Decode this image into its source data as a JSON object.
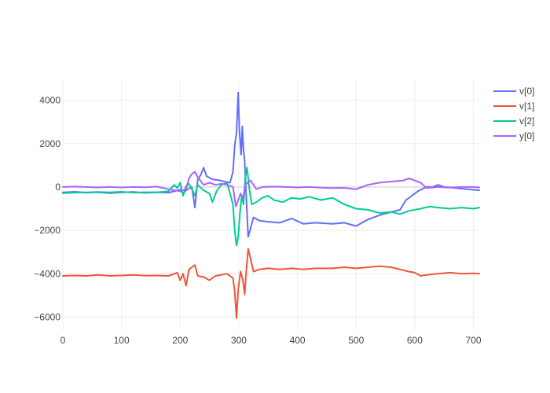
{
  "chart_data": {
    "type": "line",
    "title": "",
    "xlabel": "",
    "ylabel": "",
    "xlim": [
      0,
      710
    ],
    "ylim": [
      -6600,
      5000
    ],
    "x_ticks": [
      0,
      100,
      200,
      300,
      400,
      500,
      600,
      700
    ],
    "y_ticks": [
      -6000,
      -4000,
      -2000,
      0,
      2000,
      4000
    ],
    "grid": true,
    "legend_position": "top-right",
    "series": [
      {
        "name": "v[0]",
        "color": "#636efa",
        "points": [
          [
            0,
            -250
          ],
          [
            20,
            -220
          ],
          [
            40,
            -260
          ],
          [
            60,
            -240
          ],
          [
            80,
            -280
          ],
          [
            100,
            -250
          ],
          [
            120,
            -230
          ],
          [
            140,
            -270
          ],
          [
            160,
            -240
          ],
          [
            180,
            -260
          ],
          [
            190,
            -200
          ],
          [
            200,
            -120
          ],
          [
            205,
            -300
          ],
          [
            210,
            -150
          ],
          [
            220,
            0
          ],
          [
            225,
            -950
          ],
          [
            230,
            350
          ],
          [
            235,
            550
          ],
          [
            240,
            900
          ],
          [
            245,
            500
          ],
          [
            255,
            350
          ],
          [
            265,
            320
          ],
          [
            275,
            250
          ],
          [
            285,
            200
          ],
          [
            290,
            700
          ],
          [
            293,
            1900
          ],
          [
            296,
            2500
          ],
          [
            299,
            4350
          ],
          [
            301,
            2600
          ],
          [
            304,
            1500
          ],
          [
            306,
            2800
          ],
          [
            308,
            1700
          ],
          [
            310,
            1200
          ],
          [
            313,
            -600
          ],
          [
            316,
            -2300
          ],
          [
            320,
            -1900
          ],
          [
            325,
            -1400
          ],
          [
            335,
            -1550
          ],
          [
            350,
            -1600
          ],
          [
            370,
            -1650
          ],
          [
            390,
            -1450
          ],
          [
            410,
            -1700
          ],
          [
            430,
            -1650
          ],
          [
            460,
            -1700
          ],
          [
            480,
            -1650
          ],
          [
            500,
            -1800
          ],
          [
            520,
            -1500
          ],
          [
            540,
            -1300
          ],
          [
            560,
            -1150
          ],
          [
            575,
            -1050
          ],
          [
            585,
            -600
          ],
          [
            595,
            -400
          ],
          [
            605,
            -200
          ],
          [
            620,
            0
          ],
          [
            630,
            0
          ],
          [
            640,
            100
          ],
          [
            650,
            0
          ],
          [
            670,
            -50
          ],
          [
            690,
            -100
          ],
          [
            710,
            -150
          ]
        ]
      },
      {
        "name": "v[1]",
        "color": "#ef553b",
        "points": [
          [
            0,
            -4100
          ],
          [
            20,
            -4080
          ],
          [
            40,
            -4100
          ],
          [
            60,
            -4050
          ],
          [
            80,
            -4100
          ],
          [
            100,
            -4080
          ],
          [
            120,
            -4050
          ],
          [
            140,
            -4090
          ],
          [
            160,
            -4080
          ],
          [
            180,
            -4100
          ],
          [
            195,
            -3950
          ],
          [
            200,
            -4300
          ],
          [
            205,
            -4000
          ],
          [
            210,
            -4550
          ],
          [
            215,
            -3800
          ],
          [
            220,
            -3700
          ],
          [
            225,
            -3600
          ],
          [
            230,
            -4100
          ],
          [
            240,
            -4150
          ],
          [
            250,
            -4300
          ],
          [
            260,
            -4100
          ],
          [
            270,
            -4050
          ],
          [
            280,
            -4000
          ],
          [
            290,
            -4200
          ],
          [
            293,
            -4800
          ],
          [
            296,
            -6050
          ],
          [
            299,
            -4700
          ],
          [
            303,
            -3900
          ],
          [
            307,
            -4300
          ],
          [
            310,
            -4950
          ],
          [
            313,
            -3800
          ],
          [
            316,
            -2850
          ],
          [
            320,
            -3300
          ],
          [
            325,
            -3900
          ],
          [
            335,
            -3800
          ],
          [
            350,
            -3750
          ],
          [
            370,
            -3800
          ],
          [
            390,
            -3750
          ],
          [
            410,
            -3800
          ],
          [
            430,
            -3750
          ],
          [
            460,
            -3750
          ],
          [
            480,
            -3700
          ],
          [
            500,
            -3750
          ],
          [
            520,
            -3700
          ],
          [
            540,
            -3650
          ],
          [
            560,
            -3700
          ],
          [
            575,
            -3800
          ],
          [
            590,
            -3900
          ],
          [
            600,
            -3950
          ],
          [
            610,
            -4100
          ],
          [
            620,
            -4050
          ],
          [
            640,
            -4000
          ],
          [
            660,
            -3950
          ],
          [
            680,
            -4000
          ],
          [
            700,
            -3980
          ],
          [
            710,
            -4000
          ]
        ]
      },
      {
        "name": "v[2]",
        "color": "#00cc96",
        "points": [
          [
            0,
            -280
          ],
          [
            20,
            -260
          ],
          [
            40,
            -250
          ],
          [
            60,
            -230
          ],
          [
            80,
            -250
          ],
          [
            100,
            -220
          ],
          [
            120,
            -260
          ],
          [
            140,
            -240
          ],
          [
            160,
            -250
          ],
          [
            180,
            -200
          ],
          [
            190,
            100
          ],
          [
            195,
            -50
          ],
          [
            200,
            200
          ],
          [
            205,
            -400
          ],
          [
            210,
            50
          ],
          [
            215,
            150
          ],
          [
            220,
            -100
          ],
          [
            225,
            -400
          ],
          [
            230,
            100
          ],
          [
            240,
            -150
          ],
          [
            250,
            -300
          ],
          [
            255,
            -700
          ],
          [
            262,
            -200
          ],
          [
            270,
            100
          ],
          [
            280,
            200
          ],
          [
            290,
            -800
          ],
          [
            293,
            -2000
          ],
          [
            296,
            -2700
          ],
          [
            299,
            -2300
          ],
          [
            302,
            -1200
          ],
          [
            305,
            -400
          ],
          [
            308,
            -800
          ],
          [
            311,
            400
          ],
          [
            314,
            900
          ],
          [
            318,
            -100
          ],
          [
            322,
            -800
          ],
          [
            330,
            -700
          ],
          [
            340,
            -500
          ],
          [
            350,
            -400
          ],
          [
            360,
            -600
          ],
          [
            375,
            -700
          ],
          [
            390,
            -500
          ],
          [
            405,
            -550
          ],
          [
            420,
            -450
          ],
          [
            440,
            -600
          ],
          [
            460,
            -500
          ],
          [
            480,
            -800
          ],
          [
            500,
            -1000
          ],
          [
            520,
            -1050
          ],
          [
            540,
            -1200
          ],
          [
            560,
            -1150
          ],
          [
            575,
            -1250
          ],
          [
            590,
            -1100
          ],
          [
            610,
            -1000
          ],
          [
            625,
            -900
          ],
          [
            640,
            -950
          ],
          [
            660,
            -1000
          ],
          [
            680,
            -950
          ],
          [
            700,
            -1000
          ],
          [
            710,
            -950
          ]
        ]
      },
      {
        "name": "y[0]",
        "color": "#ab63fa",
        "points": [
          [
            0,
            0
          ],
          [
            20,
            20
          ],
          [
            40,
            0
          ],
          [
            60,
            -20
          ],
          [
            80,
            0
          ],
          [
            100,
            -20
          ],
          [
            120,
            0
          ],
          [
            140,
            -10
          ],
          [
            160,
            20
          ],
          [
            180,
            -100
          ],
          [
            200,
            -200
          ],
          [
            210,
            -100
          ],
          [
            215,
            400
          ],
          [
            220,
            600
          ],
          [
            225,
            700
          ],
          [
            230,
            450
          ],
          [
            240,
            100
          ],
          [
            250,
            200
          ],
          [
            260,
            100
          ],
          [
            270,
            150
          ],
          [
            280,
            100
          ],
          [
            290,
            0
          ],
          [
            295,
            -900
          ],
          [
            299,
            -600
          ],
          [
            303,
            -300
          ],
          [
            307,
            -500
          ],
          [
            311,
            100
          ],
          [
            320,
            300
          ],
          [
            330,
            -100
          ],
          [
            340,
            0
          ],
          [
            360,
            20
          ],
          [
            380,
            0
          ],
          [
            400,
            -20
          ],
          [
            420,
            0
          ],
          [
            440,
            -30
          ],
          [
            460,
            -50
          ],
          [
            480,
            -40
          ],
          [
            500,
            -100
          ],
          [
            510,
            0
          ],
          [
            520,
            100
          ],
          [
            540,
            200
          ],
          [
            560,
            250
          ],
          [
            580,
            300
          ],
          [
            590,
            400
          ],
          [
            600,
            300
          ],
          [
            610,
            200
          ],
          [
            620,
            -50
          ],
          [
            640,
            0
          ],
          [
            660,
            -30
          ],
          [
            680,
            0
          ],
          [
            700,
            0
          ],
          [
            710,
            -20
          ]
        ]
      }
    ]
  }
}
